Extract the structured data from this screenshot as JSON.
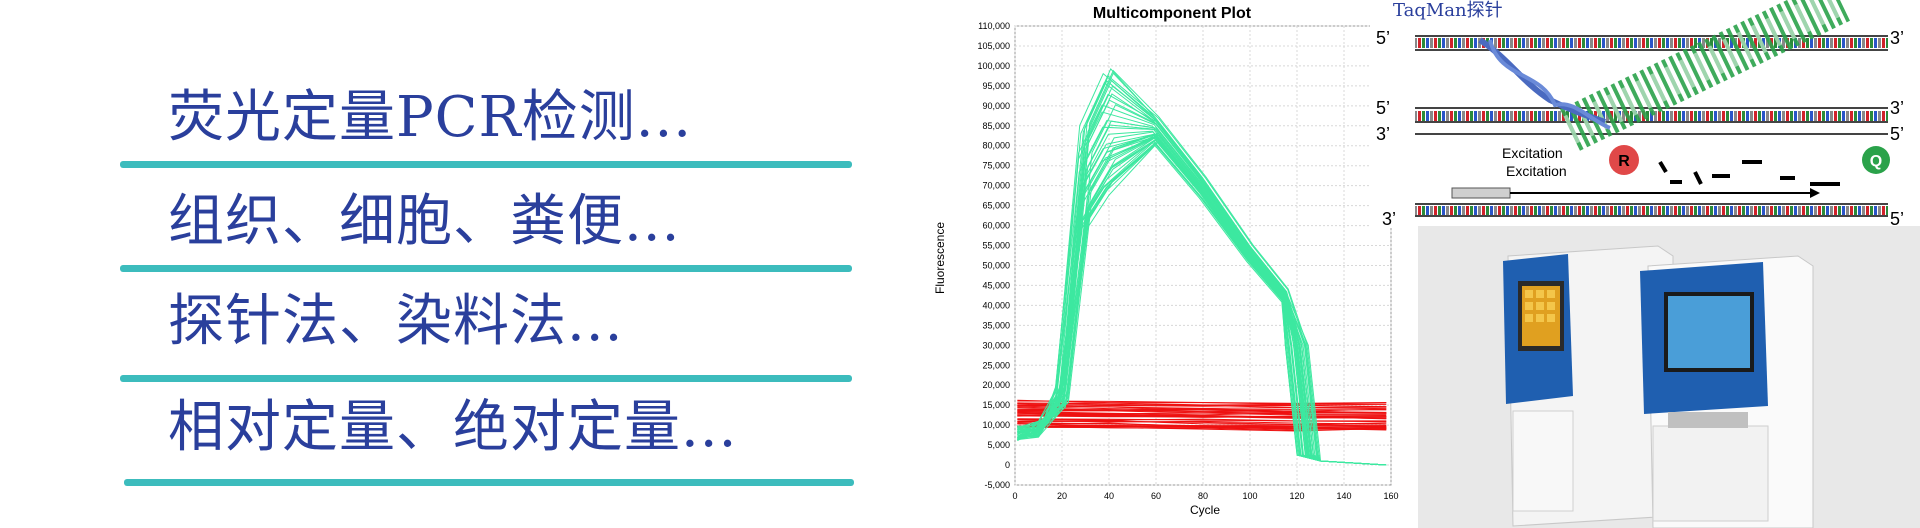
{
  "list": [
    "荧光定量PCR检测...",
    "组织、细胞、粪便...",
    "探针法、染料法...",
    "相对定量、绝对定量..."
  ],
  "colors": {
    "text": "#2a3f9c",
    "divider": "#3cbcbd",
    "green": "#3de8a0",
    "red": "#ee1111"
  },
  "chart_data": {
    "type": "line",
    "title": "Multicomponent Plot",
    "xlabel": "Cycle",
    "ylabel": "Fluorescence",
    "xlim": [
      0,
      160
    ],
    "ylim": [
      -5000,
      110000
    ],
    "xticks": [
      "0",
      "20",
      "40",
      "60",
      "80",
      "100",
      "120",
      "140",
      "160"
    ],
    "yticks": [
      "-5,000",
      "0",
      "5,000",
      "10,000",
      "15,000",
      "20,000",
      "25,000",
      "30,000",
      "35,000",
      "40,000",
      "45,000",
      "50,000",
      "55,000",
      "60,000",
      "65,000",
      "70,000",
      "75,000",
      "80,000",
      "85,000",
      "90,000",
      "95,000",
      "100,000",
      "105,000",
      "110,000"
    ],
    "grid": true,
    "series": [
      {
        "color": "#3de8a0",
        "x": [
          1,
          10,
          20,
          30,
          40,
          60,
          80,
          100,
          115,
          120,
          125,
          130,
          158
        ],
        "y": [
          8000,
          9000,
          20000,
          85000,
          98000,
          87000,
          72000,
          55000,
          44000,
          30000,
          2500,
          1000,
          0
        ]
      },
      {
        "color": "#ee1111",
        "x": [
          1,
          40,
          80,
          120,
          158
        ],
        "y": [
          13000,
          12800,
          12500,
          12300,
          12200
        ]
      }
    ]
  },
  "diagram": {
    "title": "TaqMan探针",
    "strand_5": "5’",
    "strand_3": "3’",
    "excitation": "Excitation",
    "reporter": "R",
    "quencher": "Q"
  }
}
